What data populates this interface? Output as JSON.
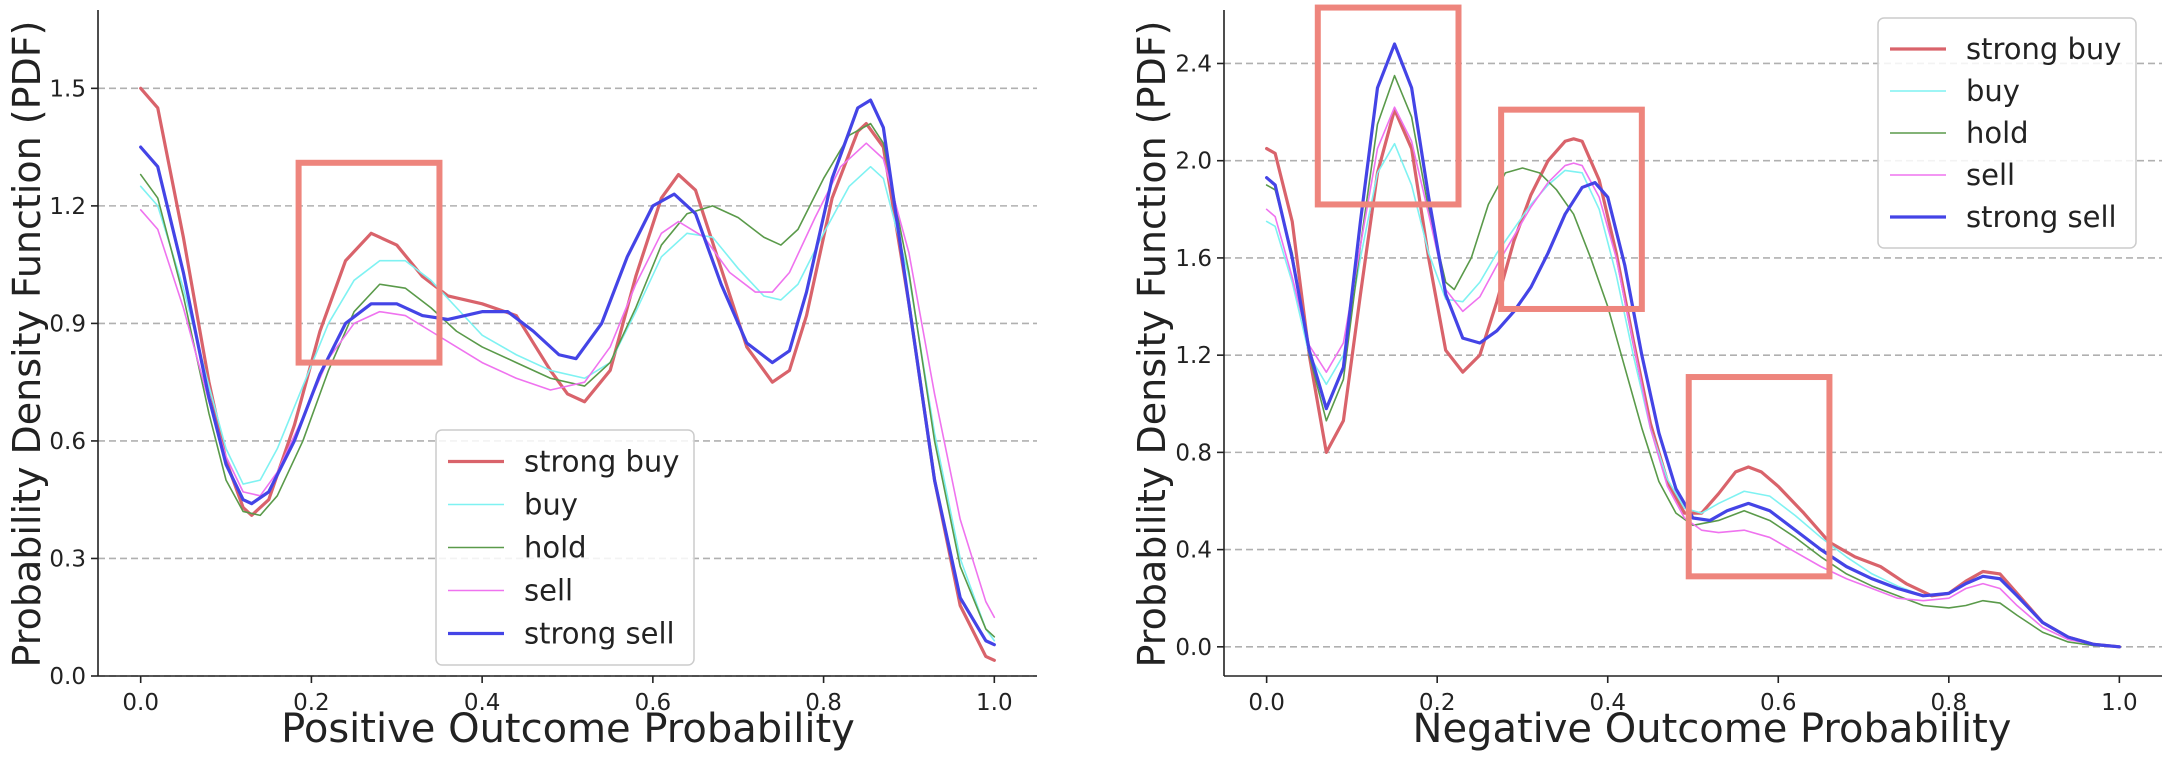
{
  "colors": {
    "strong_buy": "#d9636b",
    "buy": "#7ff2f2",
    "hold": "#5a9a4a",
    "sell": "#ef73ef",
    "strong_sell": "#4444e6",
    "highlight_box": "#ee857d",
    "grid": "#b0b0b0"
  },
  "chart_data": [
    {
      "type": "line",
      "title": "",
      "xlabel": "Positive Outcome Probability",
      "ylabel": "Probability Density Function (PDF)",
      "xlim": [
        -0.05,
        1.05
      ],
      "ylim": [
        0,
        1.7
      ],
      "xticks": [
        0.0,
        0.2,
        0.4,
        0.6,
        0.8,
        1.0
      ],
      "xtick_labels": [
        "0.0",
        "0.2",
        "0.4",
        "0.6",
        "0.8",
        "1.0"
      ],
      "yticks": [
        0.0,
        0.3,
        0.6,
        0.9,
        1.2,
        1.5
      ],
      "ytick_labels": [
        "0.0",
        "0.3",
        "0.6",
        "0.9",
        "1.2",
        "1.5"
      ],
      "grid": "horizontal dashed",
      "legend_position": "lower-center",
      "highlight_boxes": [
        {
          "x0": 0.185,
          "x1": 0.35,
          "y0": 0.8,
          "y1": 1.31
        }
      ],
      "series": [
        {
          "name": "strong buy",
          "color_key": "strong_buy",
          "width": 3.2,
          "x": [
            0.0,
            0.02,
            0.05,
            0.08,
            0.1,
            0.12,
            0.13,
            0.15,
            0.18,
            0.21,
            0.24,
            0.27,
            0.3,
            0.33,
            0.36,
            0.4,
            0.44,
            0.48,
            0.5,
            0.52,
            0.55,
            0.58,
            0.61,
            0.63,
            0.65,
            0.68,
            0.71,
            0.74,
            0.76,
            0.78,
            0.81,
            0.84,
            0.85,
            0.87,
            0.9,
            0.93,
            0.96,
            0.99,
            1.0
          ],
          "y": [
            1.5,
            1.45,
            1.12,
            0.75,
            0.55,
            0.43,
            0.41,
            0.45,
            0.64,
            0.88,
            1.06,
            1.13,
            1.1,
            1.02,
            0.97,
            0.95,
            0.92,
            0.78,
            0.72,
            0.7,
            0.78,
            1.02,
            1.22,
            1.28,
            1.24,
            1.04,
            0.84,
            0.75,
            0.78,
            0.92,
            1.22,
            1.39,
            1.41,
            1.35,
            0.95,
            0.5,
            0.18,
            0.05,
            0.04
          ]
        },
        {
          "name": "buy",
          "color_key": "buy",
          "width": 1.6,
          "x": [
            0.0,
            0.02,
            0.05,
            0.08,
            0.1,
            0.12,
            0.14,
            0.16,
            0.19,
            0.22,
            0.25,
            0.28,
            0.31,
            0.34,
            0.37,
            0.4,
            0.44,
            0.48,
            0.52,
            0.55,
            0.58,
            0.61,
            0.64,
            0.67,
            0.7,
            0.73,
            0.75,
            0.77,
            0.8,
            0.83,
            0.855,
            0.87,
            0.9,
            0.93,
            0.96,
            0.99,
            1.0
          ],
          "y": [
            1.25,
            1.2,
            0.99,
            0.74,
            0.58,
            0.49,
            0.5,
            0.58,
            0.74,
            0.9,
            1.01,
            1.06,
            1.06,
            1.01,
            0.94,
            0.87,
            0.82,
            0.78,
            0.76,
            0.8,
            0.93,
            1.07,
            1.13,
            1.12,
            1.04,
            0.97,
            0.96,
            1.0,
            1.13,
            1.25,
            1.3,
            1.27,
            1.02,
            0.62,
            0.3,
            0.12,
            0.09
          ]
        },
        {
          "name": "hold",
          "color_key": "hold",
          "width": 1.6,
          "x": [
            0.0,
            0.02,
            0.05,
            0.08,
            0.1,
            0.12,
            0.14,
            0.16,
            0.19,
            0.22,
            0.25,
            0.28,
            0.31,
            0.34,
            0.37,
            0.4,
            0.44,
            0.48,
            0.52,
            0.55,
            0.58,
            0.61,
            0.64,
            0.67,
            0.7,
            0.73,
            0.75,
            0.77,
            0.8,
            0.83,
            0.855,
            0.87,
            0.9,
            0.93,
            0.96,
            0.99,
            1.0
          ],
          "y": [
            1.28,
            1.22,
            0.97,
            0.67,
            0.5,
            0.42,
            0.41,
            0.46,
            0.6,
            0.78,
            0.93,
            1.0,
            0.99,
            0.94,
            0.88,
            0.84,
            0.8,
            0.76,
            0.74,
            0.8,
            0.94,
            1.1,
            1.18,
            1.2,
            1.17,
            1.12,
            1.1,
            1.14,
            1.27,
            1.38,
            1.41,
            1.36,
            1.03,
            0.6,
            0.28,
            0.12,
            0.1
          ]
        },
        {
          "name": "sell",
          "color_key": "sell",
          "width": 1.6,
          "x": [
            0.0,
            0.02,
            0.05,
            0.08,
            0.1,
            0.12,
            0.14,
            0.16,
            0.19,
            0.22,
            0.25,
            0.28,
            0.31,
            0.34,
            0.37,
            0.4,
            0.44,
            0.48,
            0.52,
            0.55,
            0.58,
            0.61,
            0.63,
            0.66,
            0.69,
            0.72,
            0.74,
            0.76,
            0.79,
            0.82,
            0.85,
            0.87,
            0.9,
            0.93,
            0.96,
            0.99,
            1.0
          ],
          "y": [
            1.19,
            1.14,
            0.94,
            0.7,
            0.56,
            0.47,
            0.46,
            0.52,
            0.66,
            0.81,
            0.9,
            0.93,
            0.92,
            0.88,
            0.84,
            0.8,
            0.76,
            0.73,
            0.75,
            0.84,
            1.0,
            1.13,
            1.16,
            1.12,
            1.03,
            0.98,
            0.98,
            1.03,
            1.17,
            1.3,
            1.36,
            1.32,
            1.08,
            0.72,
            0.4,
            0.19,
            0.15
          ]
        },
        {
          "name": "strong sell",
          "color_key": "strong_sell",
          "width": 3.2,
          "x": [
            0.0,
            0.02,
            0.05,
            0.08,
            0.1,
            0.12,
            0.13,
            0.15,
            0.18,
            0.21,
            0.24,
            0.27,
            0.3,
            0.33,
            0.36,
            0.4,
            0.43,
            0.46,
            0.49,
            0.51,
            0.54,
            0.57,
            0.6,
            0.625,
            0.65,
            0.68,
            0.71,
            0.74,
            0.76,
            0.78,
            0.81,
            0.84,
            0.855,
            0.87,
            0.9,
            0.93,
            0.96,
            0.99,
            1.0
          ],
          "y": [
            1.35,
            1.3,
            1.03,
            0.71,
            0.54,
            0.45,
            0.44,
            0.47,
            0.6,
            0.77,
            0.9,
            0.95,
            0.95,
            0.92,
            0.91,
            0.93,
            0.93,
            0.88,
            0.82,
            0.81,
            0.9,
            1.07,
            1.2,
            1.23,
            1.18,
            1.0,
            0.85,
            0.8,
            0.83,
            0.98,
            1.27,
            1.45,
            1.47,
            1.4,
            0.95,
            0.5,
            0.2,
            0.09,
            0.08
          ]
        }
      ]
    },
    {
      "type": "line",
      "title": "",
      "xlabel": "Negative Outcome Probability",
      "ylabel": "Probability Density Function (PDF)",
      "xlim": [
        -0.05,
        1.05
      ],
      "ylim": [
        -0.12,
        2.62
      ],
      "xticks": [
        0.0,
        0.2,
        0.4,
        0.6,
        0.8,
        1.0
      ],
      "xtick_labels": [
        "0.0",
        "0.2",
        "0.4",
        "0.6",
        "0.8",
        "1.0"
      ],
      "yticks": [
        0.0,
        0.4,
        0.8,
        1.2,
        1.6,
        2.0,
        2.4
      ],
      "ytick_labels": [
        "0.0",
        "0.4",
        "0.8",
        "1.2",
        "1.6",
        "2.0",
        "2.4"
      ],
      "grid": "horizontal dashed",
      "legend_position": "upper-right",
      "highlight_boxes": [
        {
          "x0": 0.06,
          "x1": 0.225,
          "y0": 1.82,
          "y1": 2.63
        },
        {
          "x0": 0.275,
          "x1": 0.44,
          "y0": 1.39,
          "y1": 2.21
        },
        {
          "x0": 0.495,
          "x1": 0.66,
          "y0": 0.29,
          "y1": 1.11
        }
      ],
      "series": [
        {
          "name": "strong buy",
          "color_key": "strong_buy",
          "width": 3.2,
          "x": [
            0.0,
            0.01,
            0.03,
            0.05,
            0.07,
            0.09,
            0.11,
            0.13,
            0.15,
            0.17,
            0.19,
            0.21,
            0.23,
            0.25,
            0.27,
            0.29,
            0.31,
            0.33,
            0.35,
            0.36,
            0.37,
            0.39,
            0.41,
            0.43,
            0.45,
            0.47,
            0.49,
            0.51,
            0.53,
            0.55,
            0.565,
            0.58,
            0.6,
            0.63,
            0.66,
            0.69,
            0.72,
            0.75,
            0.78,
            0.8,
            0.82,
            0.84,
            0.86,
            0.88,
            0.91,
            0.94,
            0.97,
            1.0
          ],
          "y": [
            2.05,
            2.03,
            1.75,
            1.2,
            0.8,
            0.93,
            1.45,
            1.95,
            2.21,
            2.05,
            1.6,
            1.22,
            1.13,
            1.2,
            1.42,
            1.67,
            1.86,
            2.0,
            2.08,
            2.09,
            2.08,
            1.92,
            1.62,
            1.26,
            0.92,
            0.68,
            0.55,
            0.55,
            0.63,
            0.72,
            0.74,
            0.72,
            0.66,
            0.55,
            0.43,
            0.37,
            0.33,
            0.26,
            0.21,
            0.22,
            0.27,
            0.31,
            0.3,
            0.22,
            0.1,
            0.04,
            0.01,
            0.0
          ]
        },
        {
          "name": "buy",
          "color_key": "buy",
          "width": 1.6,
          "x": [
            0.0,
            0.01,
            0.03,
            0.05,
            0.07,
            0.09,
            0.11,
            0.13,
            0.15,
            0.17,
            0.19,
            0.21,
            0.23,
            0.25,
            0.27,
            0.29,
            0.31,
            0.33,
            0.35,
            0.37,
            0.39,
            0.41,
            0.43,
            0.45,
            0.47,
            0.49,
            0.51,
            0.53,
            0.56,
            0.59,
            0.62,
            0.65,
            0.68,
            0.71,
            0.74,
            0.77,
            0.8,
            0.82,
            0.84,
            0.86,
            0.88,
            0.91,
            0.94,
            0.97,
            1.0
          ],
          "y": [
            1.75,
            1.73,
            1.5,
            1.2,
            1.08,
            1.2,
            1.6,
            1.95,
            2.07,
            1.9,
            1.62,
            1.43,
            1.42,
            1.5,
            1.62,
            1.72,
            1.82,
            1.9,
            1.96,
            1.95,
            1.8,
            1.53,
            1.2,
            0.9,
            0.69,
            0.57,
            0.55,
            0.59,
            0.64,
            0.62,
            0.54,
            0.45,
            0.37,
            0.3,
            0.25,
            0.21,
            0.22,
            0.26,
            0.29,
            0.28,
            0.21,
            0.1,
            0.04,
            0.01,
            0.0
          ]
        },
        {
          "name": "hold",
          "color_key": "hold",
          "width": 1.6,
          "x": [
            0.0,
            0.01,
            0.03,
            0.05,
            0.07,
            0.09,
            0.11,
            0.13,
            0.15,
            0.17,
            0.19,
            0.21,
            0.22,
            0.24,
            0.26,
            0.28,
            0.3,
            0.32,
            0.34,
            0.36,
            0.38,
            0.4,
            0.42,
            0.44,
            0.46,
            0.48,
            0.5,
            0.53,
            0.56,
            0.59,
            0.62,
            0.65,
            0.68,
            0.71,
            0.74,
            0.77,
            0.8,
            0.82,
            0.84,
            0.86,
            0.88,
            0.91,
            0.94,
            0.97,
            1.0
          ],
          "y": [
            1.9,
            1.88,
            1.62,
            1.2,
            0.93,
            1.1,
            1.65,
            2.15,
            2.35,
            2.18,
            1.8,
            1.5,
            1.47,
            1.6,
            1.82,
            1.95,
            1.97,
            1.95,
            1.88,
            1.78,
            1.6,
            1.4,
            1.15,
            0.9,
            0.68,
            0.55,
            0.5,
            0.52,
            0.56,
            0.52,
            0.45,
            0.37,
            0.3,
            0.25,
            0.21,
            0.17,
            0.16,
            0.17,
            0.19,
            0.18,
            0.13,
            0.06,
            0.02,
            0.005,
            0.0
          ]
        },
        {
          "name": "sell",
          "color_key": "sell",
          "width": 1.6,
          "x": [
            0.0,
            0.01,
            0.03,
            0.05,
            0.07,
            0.09,
            0.11,
            0.13,
            0.15,
            0.17,
            0.19,
            0.21,
            0.23,
            0.25,
            0.27,
            0.29,
            0.31,
            0.33,
            0.35,
            0.36,
            0.37,
            0.39,
            0.41,
            0.43,
            0.45,
            0.47,
            0.49,
            0.51,
            0.53,
            0.56,
            0.59,
            0.62,
            0.65,
            0.68,
            0.71,
            0.74,
            0.77,
            0.8,
            0.82,
            0.84,
            0.86,
            0.88,
            0.91,
            0.94,
            0.97,
            1.0
          ],
          "y": [
            1.8,
            1.77,
            1.52,
            1.24,
            1.13,
            1.25,
            1.65,
            2.05,
            2.22,
            2.08,
            1.78,
            1.47,
            1.38,
            1.44,
            1.57,
            1.69,
            1.81,
            1.91,
            1.98,
            1.99,
            1.98,
            1.85,
            1.6,
            1.25,
            0.9,
            0.66,
            0.53,
            0.48,
            0.47,
            0.48,
            0.45,
            0.39,
            0.33,
            0.28,
            0.24,
            0.2,
            0.19,
            0.2,
            0.24,
            0.26,
            0.24,
            0.17,
            0.08,
            0.03,
            0.01,
            0.0
          ]
        },
        {
          "name": "strong sell",
          "color_key": "strong_sell",
          "width": 3.2,
          "x": [
            0.0,
            0.01,
            0.03,
            0.05,
            0.07,
            0.09,
            0.11,
            0.13,
            0.15,
            0.17,
            0.19,
            0.21,
            0.23,
            0.25,
            0.27,
            0.29,
            0.31,
            0.33,
            0.35,
            0.37,
            0.385,
            0.4,
            0.42,
            0.44,
            0.46,
            0.48,
            0.5,
            0.52,
            0.54,
            0.565,
            0.59,
            0.62,
            0.65,
            0.68,
            0.71,
            0.74,
            0.77,
            0.8,
            0.82,
            0.84,
            0.86,
            0.88,
            0.91,
            0.94,
            0.97,
            1.0
          ],
          "y": [
            1.93,
            1.9,
            1.6,
            1.22,
            0.98,
            1.15,
            1.75,
            2.3,
            2.48,
            2.3,
            1.85,
            1.45,
            1.27,
            1.25,
            1.3,
            1.38,
            1.48,
            1.62,
            1.78,
            1.89,
            1.91,
            1.85,
            1.57,
            1.2,
            0.88,
            0.65,
            0.53,
            0.52,
            0.56,
            0.59,
            0.56,
            0.48,
            0.4,
            0.33,
            0.28,
            0.24,
            0.21,
            0.22,
            0.26,
            0.29,
            0.28,
            0.21,
            0.1,
            0.04,
            0.01,
            0.0
          ]
        }
      ]
    }
  ]
}
